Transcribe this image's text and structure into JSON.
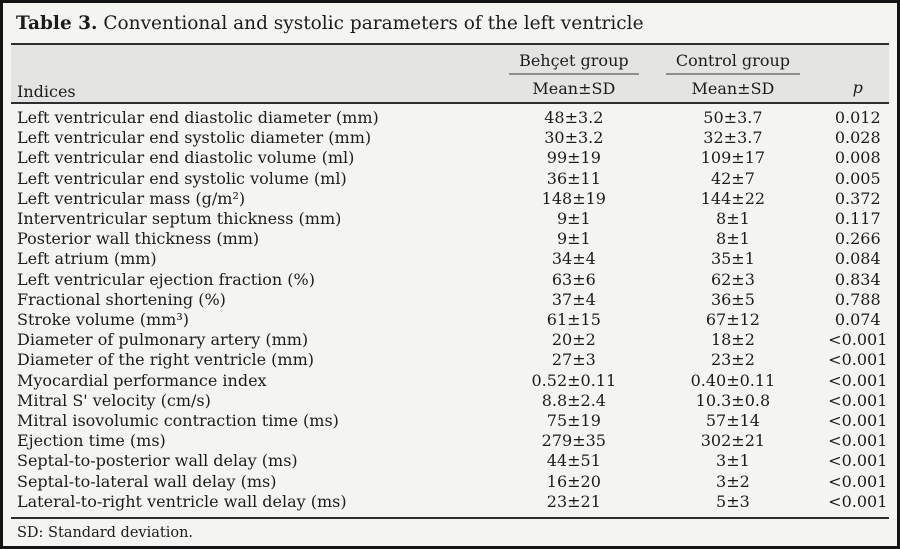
{
  "title": {
    "label": "Table 3.",
    "text": "Conventional and systolic parameters of the left ventricle"
  },
  "table": {
    "col_indices": "Indices",
    "groups": [
      {
        "name": "Behçet group",
        "sub": "Mean±SD"
      },
      {
        "name": "Control group",
        "sub": "Mean±SD"
      }
    ],
    "p_label": "p",
    "rows": [
      {
        "label": "Left ventricular end diastolic diameter (mm)",
        "behcet": "48±3.2",
        "control": "50±3.7",
        "p": "0.012"
      },
      {
        "label": "Left ventricular end systolic diameter (mm)",
        "behcet": "30±3.2",
        "control": "32±3.7",
        "p": "0.028"
      },
      {
        "label": "Left ventricular end diastolic volume (ml)",
        "behcet": "99±19",
        "control": "109±17",
        "p": "0.008"
      },
      {
        "label": "Left ventricular end systolic volume (ml)",
        "behcet": "36±11",
        "control": "42±7",
        "p": "0.005"
      },
      {
        "label": "Left ventricular mass (g/m²)",
        "behcet": "148±19",
        "control": "144±22",
        "p": "0.372"
      },
      {
        "label": "Interventricular septum thickness (mm)",
        "behcet": "9±1",
        "control": "8±1",
        "p": "0.117"
      },
      {
        "label": "Posterior wall thickness (mm)",
        "behcet": "9±1",
        "control": "8±1",
        "p": "0.266"
      },
      {
        "label": "Left atrium (mm)",
        "behcet": "34±4",
        "control": "35±1",
        "p": "0.084"
      },
      {
        "label": "Left ventricular ejection fraction (%)",
        "behcet": "63±6",
        "control": "62±3",
        "p": "0.834"
      },
      {
        "label": "Fractional shortening (%)",
        "behcet": "37±4",
        "control": "36±5",
        "p": "0.788"
      },
      {
        "label": "Stroke volume (mm³)",
        "behcet": "61±15",
        "control": "67±12",
        "p": "0.074"
      },
      {
        "label": "Diameter of pulmonary artery (mm)",
        "behcet": "20±2",
        "control": "18±2",
        "p": "<0.001"
      },
      {
        "label": "Diameter of the right ventricle (mm)",
        "behcet": "27±3",
        "control": "23±2",
        "p": "<0.001"
      },
      {
        "label": "Myocardial performance index",
        "behcet": "0.52±0.11",
        "control": "0.40±0.11",
        "p": "<0.001"
      },
      {
        "label": "Mitral S' velocity (cm/s)",
        "behcet": "8.8±2.4",
        "control": "10.3±0.8",
        "p": "<0.001"
      },
      {
        "label": "Mitral isovolumic contraction time (ms)",
        "behcet": "75±19",
        "control": "57±14",
        "p": "<0.001"
      },
      {
        "label": "Ejection time (ms)",
        "behcet": "279±35",
        "control": "302±21",
        "p": "<0.001"
      },
      {
        "label": "Septal-to-posterior wall delay (ms)",
        "behcet": "44±51",
        "control": "3±1",
        "p": "<0.001"
      },
      {
        "label": "Septal-to-lateral wall delay (ms)",
        "behcet": "16±20",
        "control": "3±2",
        "p": "<0.001"
      },
      {
        "label": "Lateral-to-right ventricle wall delay (ms)",
        "behcet": "23±21",
        "control": "5±3",
        "p": "<0.001"
      }
    ]
  },
  "footnote": "SD: Standard deviation.",
  "colors": {
    "background": "#f4f4f1",
    "header_band": "#e4e4e2",
    "heavy_rule": "#2e2e2e",
    "group_underline": "#8f8f8f",
    "frame_border": "#141414",
    "text": "#1c1c1c"
  }
}
